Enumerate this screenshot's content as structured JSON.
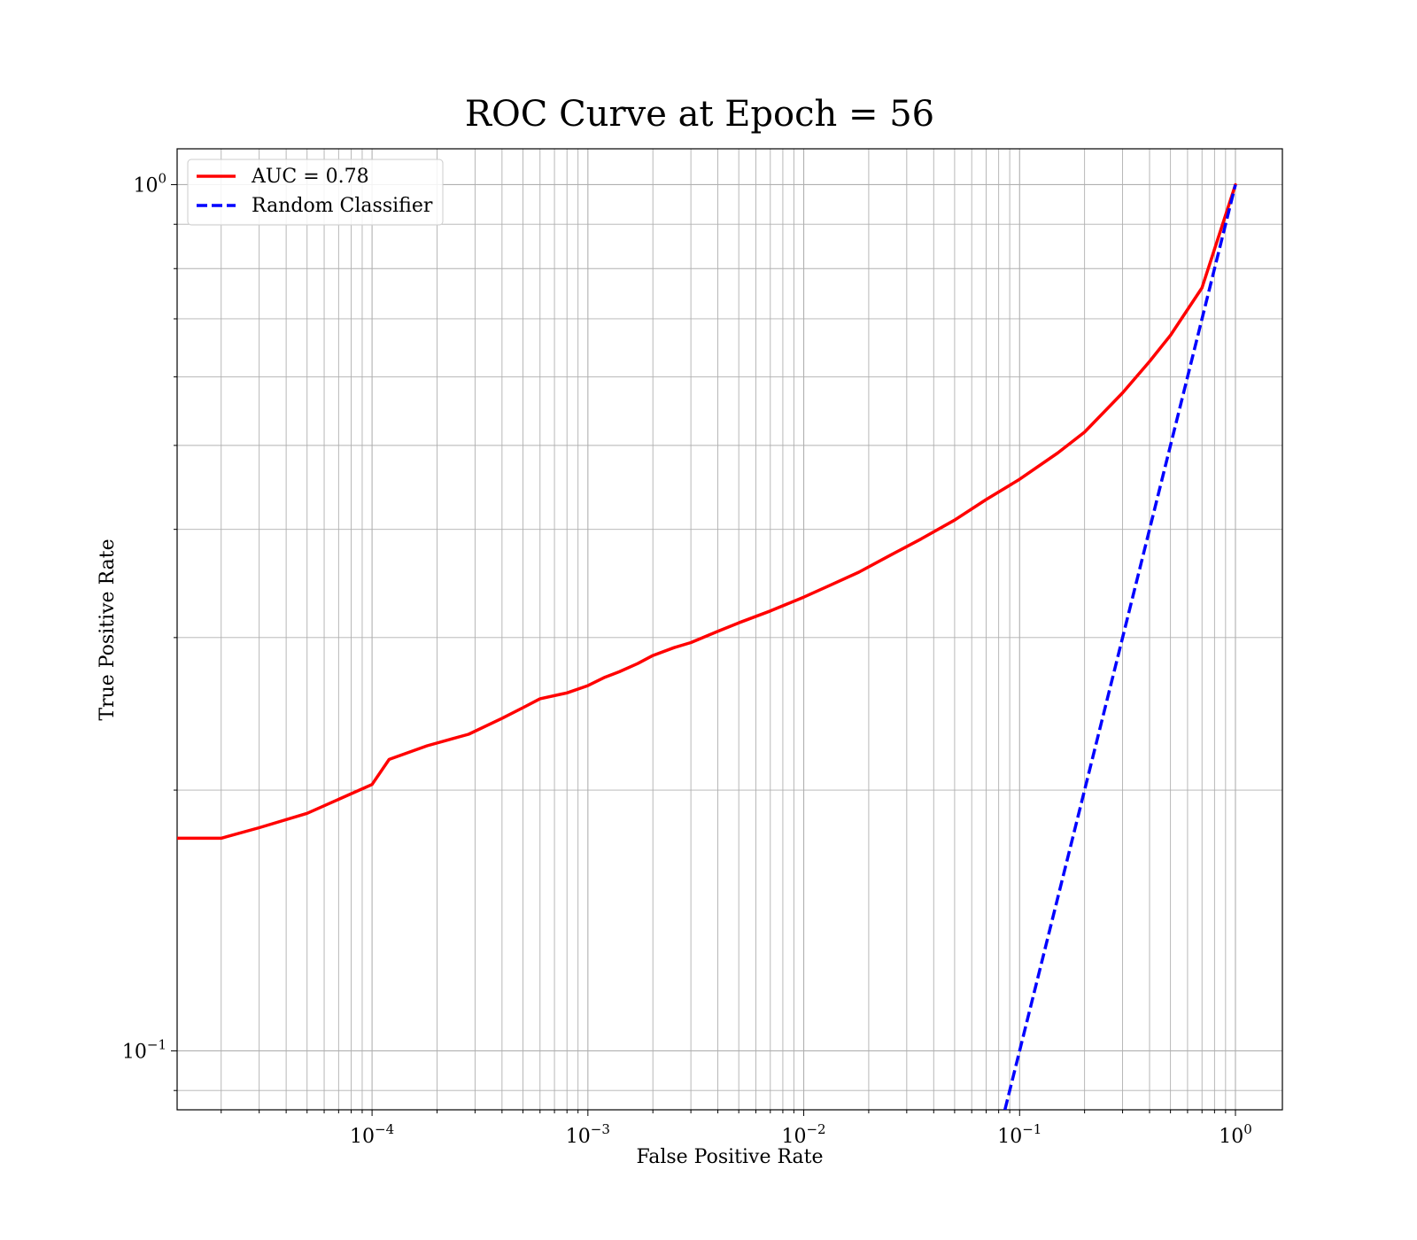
{
  "chart_data": {
    "type": "line",
    "title": "ROC Curve at Epoch = 56",
    "xlabel": "False Positive Rate",
    "ylabel": "True Positive Rate",
    "xscale": "log",
    "yscale": "log",
    "xlim": [
      1.25e-05,
      1.65
    ],
    "ylim": [
      0.0855,
      1.1
    ],
    "grid": "major-and-minor",
    "legend_position": "top-left",
    "x_tick_labels": [
      {
        "value": 0.0001,
        "base": "10",
        "exp": "−4"
      },
      {
        "value": 0.001,
        "base": "10",
        "exp": "−3"
      },
      {
        "value": 0.01,
        "base": "10",
        "exp": "−2"
      },
      {
        "value": 0.1,
        "base": "10",
        "exp": "−1"
      },
      {
        "value": 1,
        "base": "10",
        "exp": "0"
      }
    ],
    "y_tick_labels": [
      {
        "value": 0.1,
        "base": "10",
        "exp": "−1"
      },
      {
        "value": 1,
        "base": "10",
        "exp": "0"
      }
    ],
    "series": [
      {
        "name": "AUC = 0.78",
        "color": "#ff0000",
        "style": "solid",
        "x": [
          1.25e-05,
          2e-05,
          3e-05,
          5e-05,
          0.0001,
          0.00012,
          0.00018,
          0.00028,
          0.0004,
          0.0005,
          0.0006,
          0.0008,
          0.001,
          0.0012,
          0.0014,
          0.0017,
          0.002,
          0.0025,
          0.003,
          0.004,
          0.005,
          0.007,
          0.01,
          0.013,
          0.018,
          0.025,
          0.035,
          0.05,
          0.07,
          0.1,
          0.15,
          0.2,
          0.3,
          0.4,
          0.5,
          0.7,
          1.0
        ],
        "y": [
          0.176,
          0.176,
          0.181,
          0.188,
          0.203,
          0.217,
          0.225,
          0.232,
          0.242,
          0.249,
          0.255,
          0.259,
          0.264,
          0.27,
          0.274,
          0.28,
          0.286,
          0.292,
          0.296,
          0.305,
          0.312,
          0.322,
          0.334,
          0.344,
          0.357,
          0.373,
          0.39,
          0.41,
          0.433,
          0.457,
          0.49,
          0.518,
          0.575,
          0.625,
          0.67,
          0.76,
          1.0
        ]
      },
      {
        "name": "Random Classifier",
        "color": "#0000ff",
        "style": "dashed",
        "x": [
          0.0855,
          1.0
        ],
        "y": [
          0.0855,
          1.0
        ]
      }
    ]
  }
}
